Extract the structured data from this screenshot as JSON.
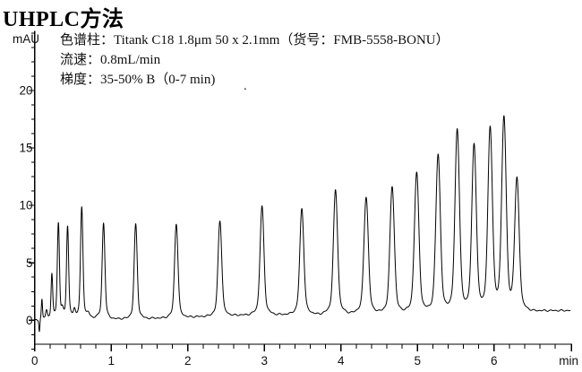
{
  "title": "UHPLC方法",
  "annotation": {
    "column": "色谱柱：Titank C18 1.8μm 50 x 2.1mm（货号：FMB-5558-BONU）",
    "flow_rate": "流速：0.8mL/min",
    "gradient": "梯度：35-50% B（0-7 min)",
    "stray_dot": "."
  },
  "chart_data": {
    "type": "line",
    "title": "UHPLC方法",
    "xlabel": "min",
    "ylabel": "mAU",
    "xlim": [
      0,
      7
    ],
    "ylim": [
      -2.1,
      25.2
    ],
    "x_major_ticks": [
      0,
      1,
      2,
      3,
      4,
      5,
      6
    ],
    "x_minor_step": 0.2,
    "y_major_ticks": [
      0,
      5,
      10,
      15,
      20
    ],
    "y_minor_step": 1.25,
    "grid": false,
    "trace_color": "#000000",
    "axis_color": "#000000",
    "peaks_format": [
      "time_min",
      "height_mAU_above_baseline",
      "sigma_min"
    ],
    "peaks": [
      [
        0.225,
        3.6,
        0.01
      ],
      [
        0.31,
        8.0,
        0.013
      ],
      [
        0.43,
        7.7,
        0.013
      ],
      [
        0.615,
        9.3,
        0.015
      ],
      [
        0.9,
        8.1,
        0.017
      ],
      [
        1.32,
        8.0,
        0.019
      ],
      [
        1.85,
        8.0,
        0.021
      ],
      [
        2.42,
        8.1,
        0.023
      ],
      [
        2.97,
        9.2,
        0.024
      ],
      [
        3.49,
        9.0,
        0.025
      ],
      [
        3.93,
        10.5,
        0.026
      ],
      [
        4.33,
        9.9,
        0.027
      ],
      [
        4.67,
        10.8,
        0.027
      ],
      [
        4.99,
        11.9,
        0.028
      ],
      [
        5.27,
        13.5,
        0.028
      ],
      [
        5.52,
        15.6,
        0.028
      ],
      [
        5.74,
        14.3,
        0.028
      ],
      [
        5.95,
        15.6,
        0.028
      ],
      [
        6.13,
        16.5,
        0.028
      ],
      [
        6.3,
        11.2,
        0.028
      ]
    ],
    "baseline_points": [
      [
        0,
        0
      ],
      [
        0.055,
        0
      ],
      [
        0.08,
        0.25
      ],
      [
        0.5,
        0.45
      ],
      [
        0.75,
        0.3
      ],
      [
        1.05,
        0.15
      ],
      [
        1.6,
        0.2
      ],
      [
        2.2,
        0.35
      ],
      [
        2.8,
        0.5
      ],
      [
        3.6,
        0.55
      ],
      [
        4.2,
        0.65
      ],
      [
        4.9,
        0.7
      ],
      [
        5.6,
        0.75
      ],
      [
        6.45,
        0.85
      ],
      [
        7,
        0.85
      ]
    ],
    "artifacts": [
      [
        0.062,
        -1.0,
        0.006
      ],
      [
        0.095,
        1.55,
        0.007
      ],
      [
        0.155,
        0.6,
        0.01
      ],
      [
        0.36,
        0.5,
        0.012
      ],
      [
        0.52,
        0.55,
        0.012
      ],
      [
        0.7,
        0.35,
        0.015
      ]
    ]
  }
}
